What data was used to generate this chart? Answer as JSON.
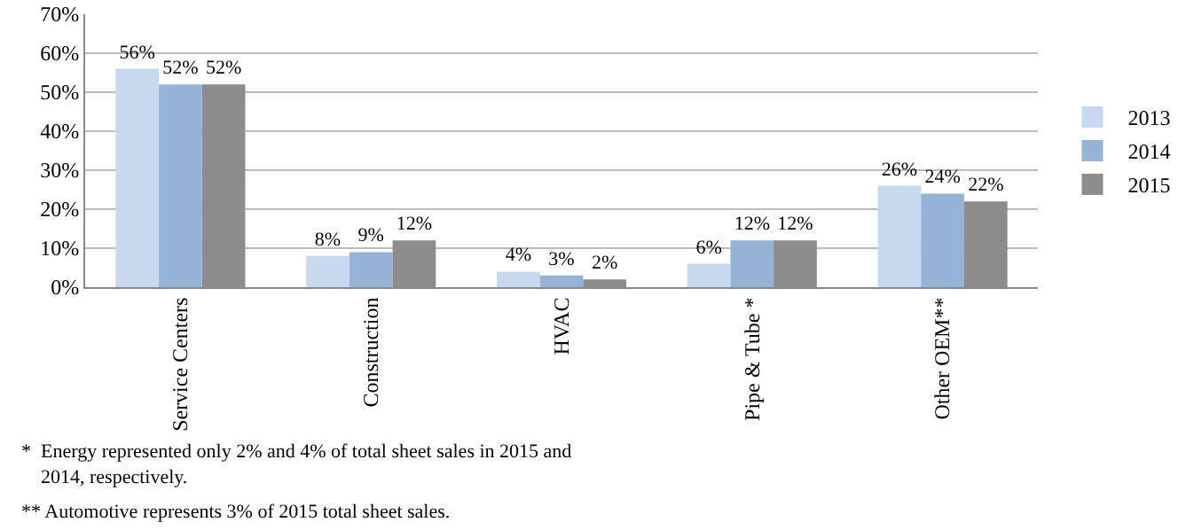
{
  "chart_data": {
    "type": "bar",
    "categories": [
      "Service Centers",
      "Construction",
      "HVAC",
      "Pipe & Tube *",
      "Other OEM**"
    ],
    "series": [
      {
        "name": "2013",
        "color": "#c6d9ef",
        "values": [
          56,
          8,
          4,
          6,
          26
        ],
        "value_labels": [
          "56%",
          "8%",
          "4%",
          "6%",
          "26%"
        ]
      },
      {
        "name": "2014",
        "color": "#95b3d7",
        "values": [
          52,
          9,
          3,
          12,
          24
        ],
        "value_labels": [
          "52%",
          "9%",
          "3%",
          "12%",
          "24%"
        ]
      },
      {
        "name": "2015",
        "color": "#8c8c8c",
        "values": [
          52,
          12,
          2,
          12,
          22
        ],
        "value_labels": [
          "52%",
          "12%",
          "2%",
          "12%",
          "22%"
        ]
      }
    ],
    "ylim": [
      0,
      70
    ],
    "yticks": [
      {
        "value": 0,
        "label": "0%"
      },
      {
        "value": 10,
        "label": "10%"
      },
      {
        "value": 20,
        "label": "20%"
      },
      {
        "value": 30,
        "label": "30%"
      },
      {
        "value": 40,
        "label": "40%"
      },
      {
        "value": 50,
        "label": "50%"
      },
      {
        "value": 60,
        "label": "60%"
      },
      {
        "value": 70,
        "label": "70%"
      }
    ],
    "grid": "y",
    "legend": "right",
    "annotations": [
      "*  Energy represented only 2% and 4% of total sheet sales in 2015 and\n    2014, respectively.",
      "** Automotive represents 3% of 2015 total sheet sales."
    ]
  }
}
